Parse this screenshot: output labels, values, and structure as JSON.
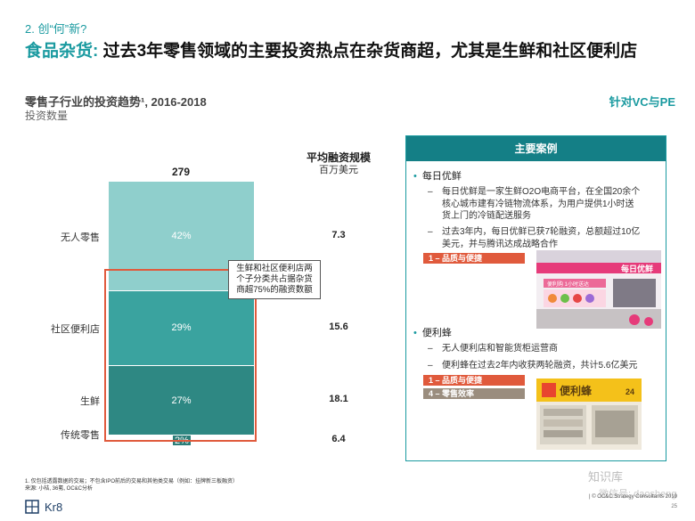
{
  "header": {
    "section": "2. 创“何”新?",
    "headline_key": "食品杂货:",
    "headline_rest": " 过去3年零售领域的主要投资热点在杂货商超，尤其是生鲜和社区便利店",
    "subtitle": "零售子行业的投资趋势¹, 2016-2018",
    "unit": "投资数量",
    "audience": "针对VC与PE"
  },
  "chart_data": {
    "type": "bar",
    "stacked": true,
    "total": "279",
    "categories": [
      "无人零售",
      "社区便利店",
      "生鲜",
      "传统零售"
    ],
    "values": [
      42,
      29,
      27,
      2
    ],
    "value_labels": [
      "42%",
      "29%",
      "27%",
      "2%"
    ],
    "avg_header": "平均融资规模",
    "avg_unit": "百万美元",
    "avg_funding": [
      "7.3",
      "15.6",
      "18.1",
      "6.4"
    ],
    "colors": [
      "#8fcfcc",
      "#3aa39f",
      "#2e8883",
      "#2a7d78"
    ],
    "callout": "生鲜和社区便利店两个子分类共占据杂货商超75%的融资数额"
  },
  "cases": {
    "title": "主要案例",
    "items": [
      {
        "name": "每日优鲜",
        "lines": [
          "每日优鲜是一家生鲜O2O电商平台，在全国20余个核心城市建有冷链物流体系，为用户提供1小时送货上门的冷链配送服务",
          "过去3年内，每日优鲜已获7轮融资，总额超过10亿美元，并与腾讯达成战略合作"
        ],
        "tags": [
          "1 – 品质与便捷"
        ],
        "photo_sign": "每日优鲜",
        "photo_sub": "便利购 1小时送达"
      },
      {
        "name": "便利蜂",
        "lines": [
          "无人便利店和智能货柜运营商",
          "便利蜂在过去2年内收获两轮融资，共计5.6亿美元"
        ],
        "tags": [
          "1 – 品质与便捷",
          "4 – 零售效率"
        ],
        "photo_sign": "便利蜂",
        "photo_sub": "24"
      }
    ]
  },
  "footer": {
    "note1": "1. 仅包括透露数据的交易；不包含IPO前后的交易和其他类交易（例如：挂牌新三板融资）",
    "note2": "来源: 小桔, 36氪, OC&C分析",
    "logo": "Kr8",
    "copyright": "| © OC&C Strategy Consultants 2019",
    "page": "25",
    "watermark1": "知识库",
    "watermark2": "微信号: daosheng"
  }
}
